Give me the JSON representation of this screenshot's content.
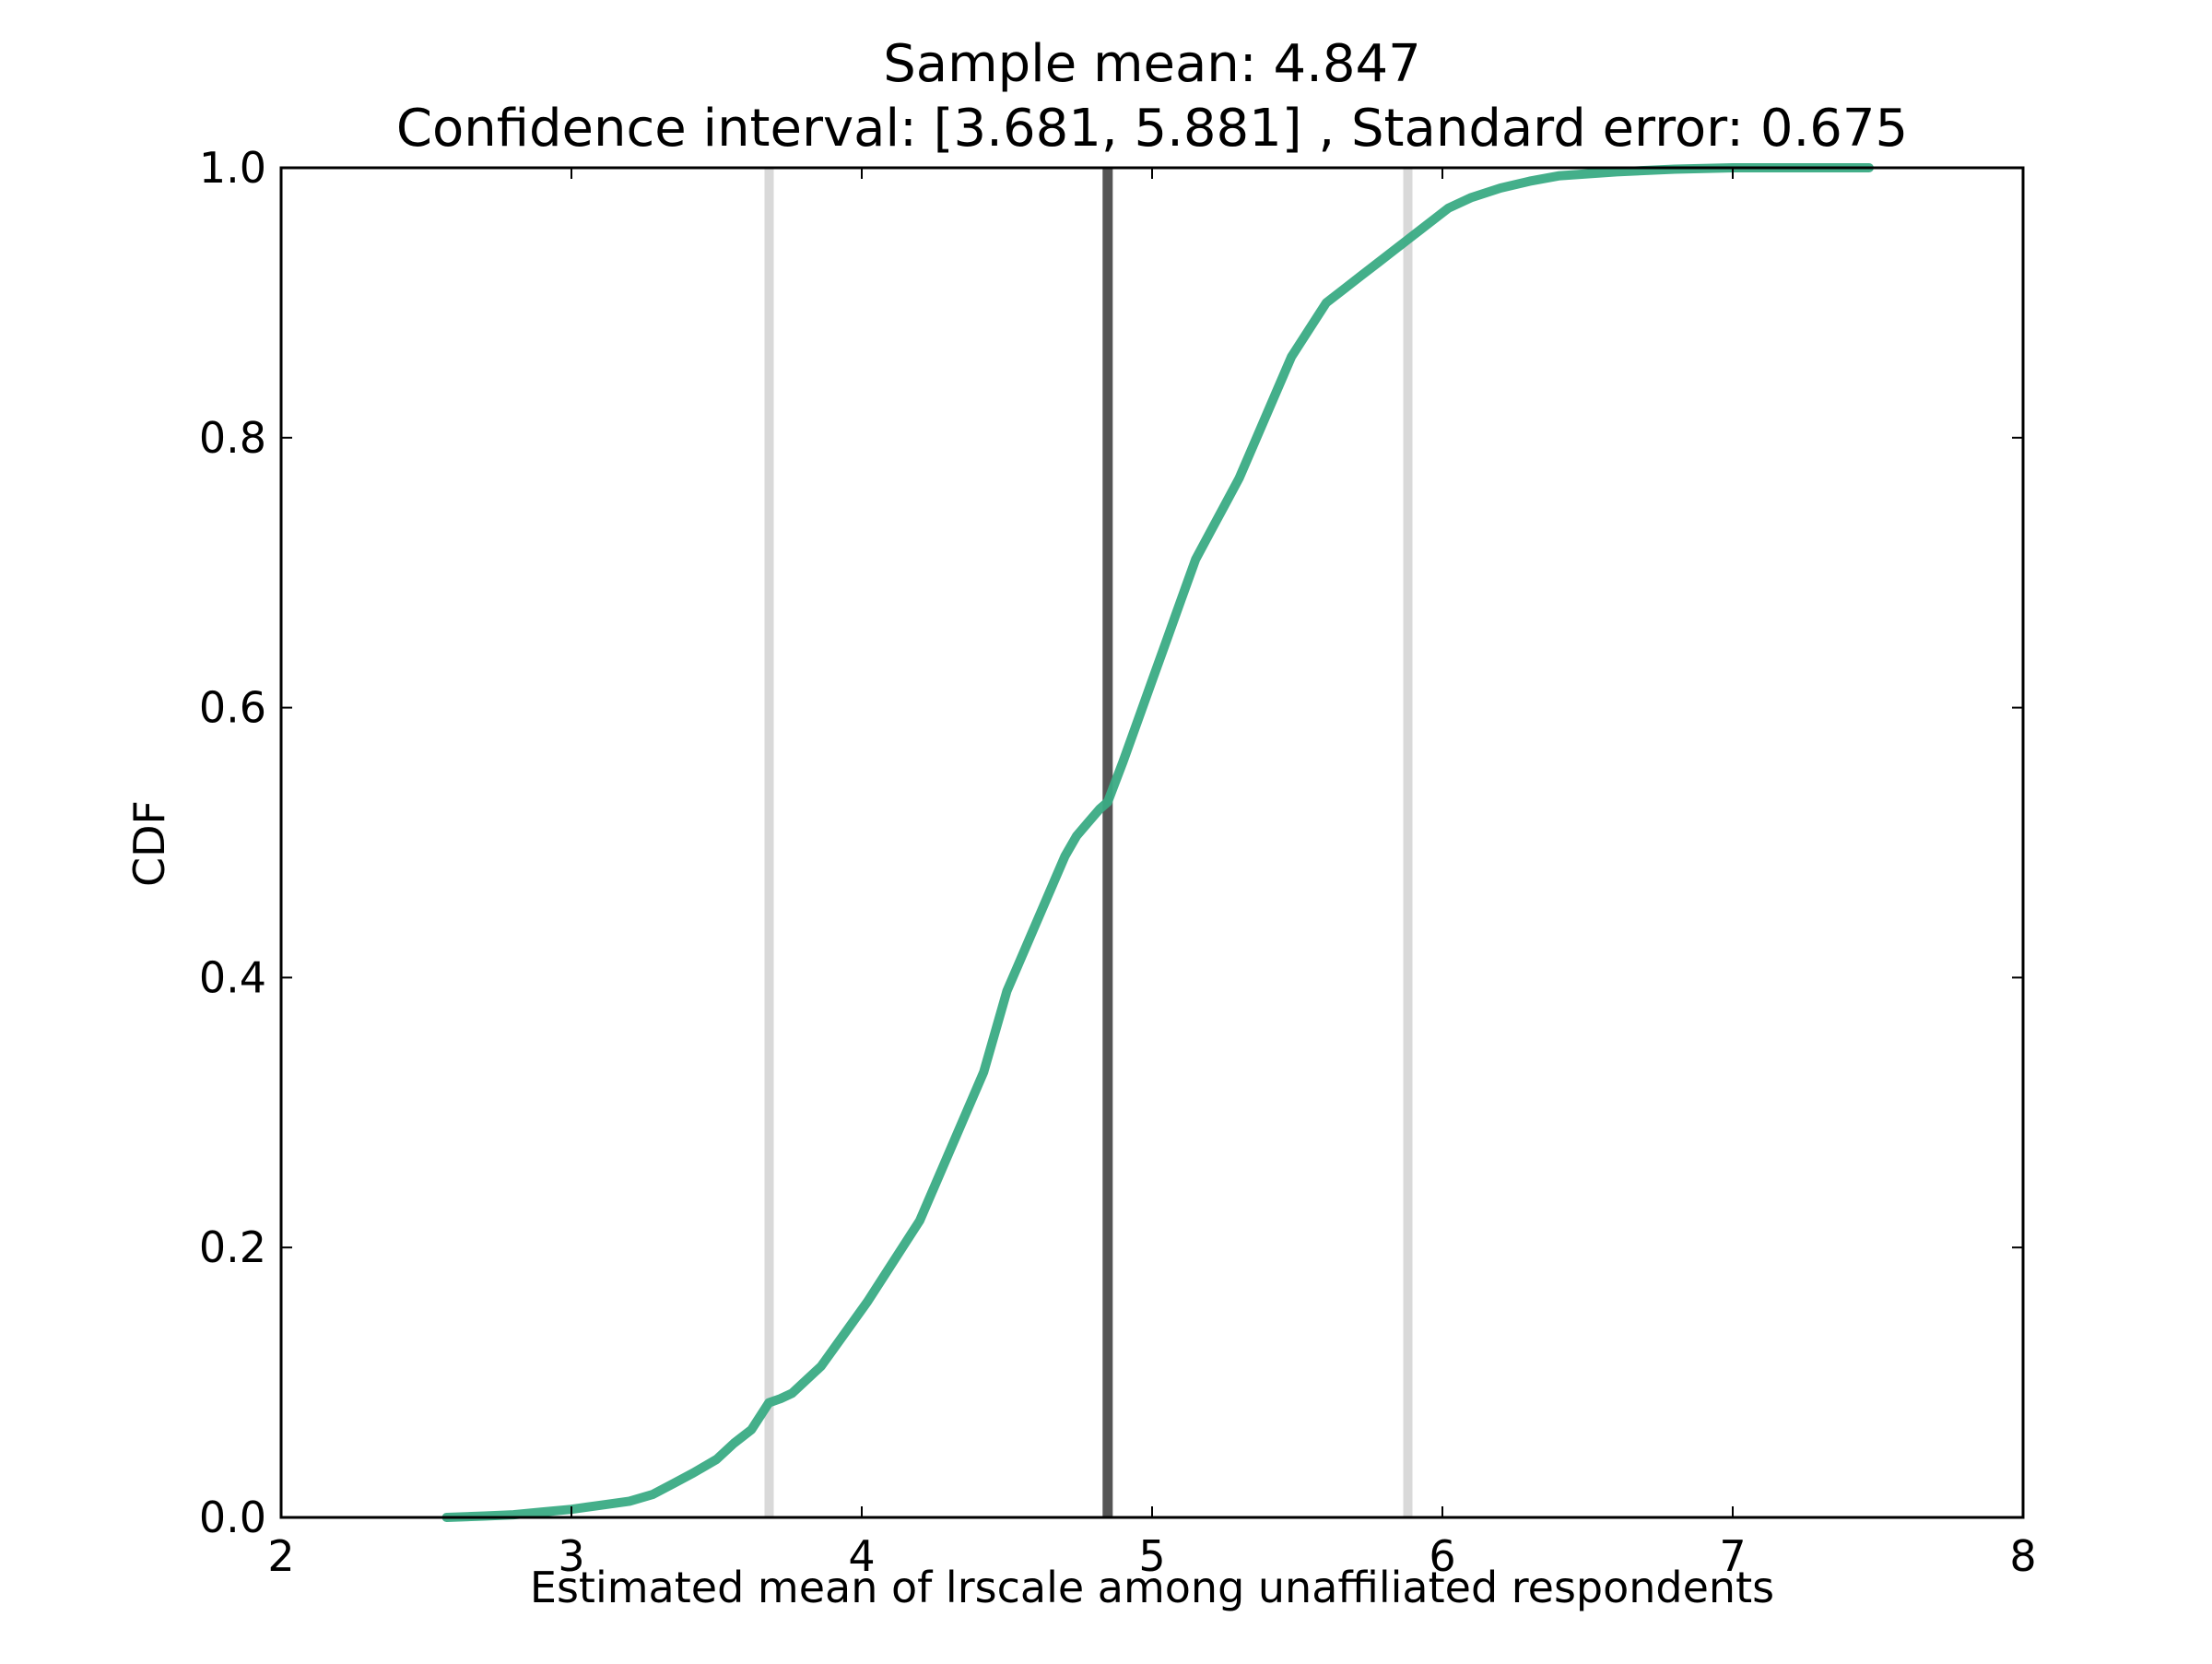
{
  "chart_data": {
    "type": "line",
    "title": "Sample mean: 4.847",
    "subtitle": "Confidence interval: [3.681, 5.881] , Standard error: 0.675",
    "xlabel": "Estimated mean of lrscale among unaffiliated respondents",
    "ylabel": "CDF",
    "xlim": [
      2,
      8
    ],
    "ylim": [
      0.0,
      1.0
    ],
    "x_ticks": [
      2,
      3,
      4,
      5,
      6,
      7,
      8
    ],
    "x_tick_labels": [
      "2",
      "3",
      "4",
      "5",
      "6",
      "7",
      "8"
    ],
    "y_ticks": [
      0.0,
      0.2,
      0.4,
      0.6,
      0.8,
      1.0
    ],
    "y_tick_labels": [
      "0.0",
      "0.2",
      "0.4",
      "0.6",
      "0.8",
      "1.0"
    ],
    "grid": false,
    "colors": {
      "cdf_line": "#3aab84",
      "mean_line": "#555555",
      "ci_line": "#d9d9d9",
      "axes": "#000000"
    },
    "vertical_lines": [
      {
        "role": "ci_low",
        "x": 3.681
      },
      {
        "role": "mean",
        "x": 4.847
      },
      {
        "role": "ci_high",
        "x": 5.881
      }
    ],
    "series": [
      {
        "x": [
          2.57,
          2.7,
          2.8,
          2.9,
          3.0,
          3.1,
          3.2,
          3.28,
          3.35,
          3.42,
          3.5,
          3.56,
          3.62,
          3.68,
          3.72,
          3.76,
          3.8,
          3.86,
          3.92,
          3.97,
          4.02,
          4.08,
          4.14,
          4.2,
          4.26,
          4.32,
          4.38,
          4.42,
          4.46,
          4.5,
          4.54,
          4.58,
          4.62,
          4.66,
          4.7,
          4.74,
          4.78,
          4.82,
          4.847,
          4.9,
          4.95,
          5.0,
          5.05,
          5.1,
          5.15,
          5.2,
          5.25,
          5.3,
          5.36,
          5.42,
          5.48,
          5.54,
          5.6,
          5.66,
          5.72,
          5.78,
          5.84,
          5.9,
          5.96,
          6.02,
          6.1,
          6.2,
          6.3,
          6.4,
          6.6,
          6.8,
          7.0,
          7.2,
          7.47
        ],
        "y": [
          0.0,
          0.001,
          0.002,
          0.004,
          0.006,
          0.009,
          0.012,
          0.017,
          0.025,
          0.033,
          0.043,
          0.055,
          0.065,
          0.085,
          0.088,
          0.092,
          0.1,
          0.112,
          0.13,
          0.145,
          0.16,
          0.18,
          0.2,
          0.22,
          0.25,
          0.28,
          0.31,
          0.33,
          0.36,
          0.39,
          0.41,
          0.43,
          0.45,
          0.47,
          0.49,
          0.505,
          0.515,
          0.525,
          0.53,
          0.56,
          0.59,
          0.62,
          0.65,
          0.68,
          0.71,
          0.73,
          0.75,
          0.77,
          0.8,
          0.83,
          0.86,
          0.88,
          0.9,
          0.91,
          0.92,
          0.93,
          0.94,
          0.95,
          0.96,
          0.97,
          0.978,
          0.985,
          0.99,
          0.994,
          0.997,
          0.999,
          1.0,
          1.0,
          1.0
        ]
      }
    ]
  }
}
